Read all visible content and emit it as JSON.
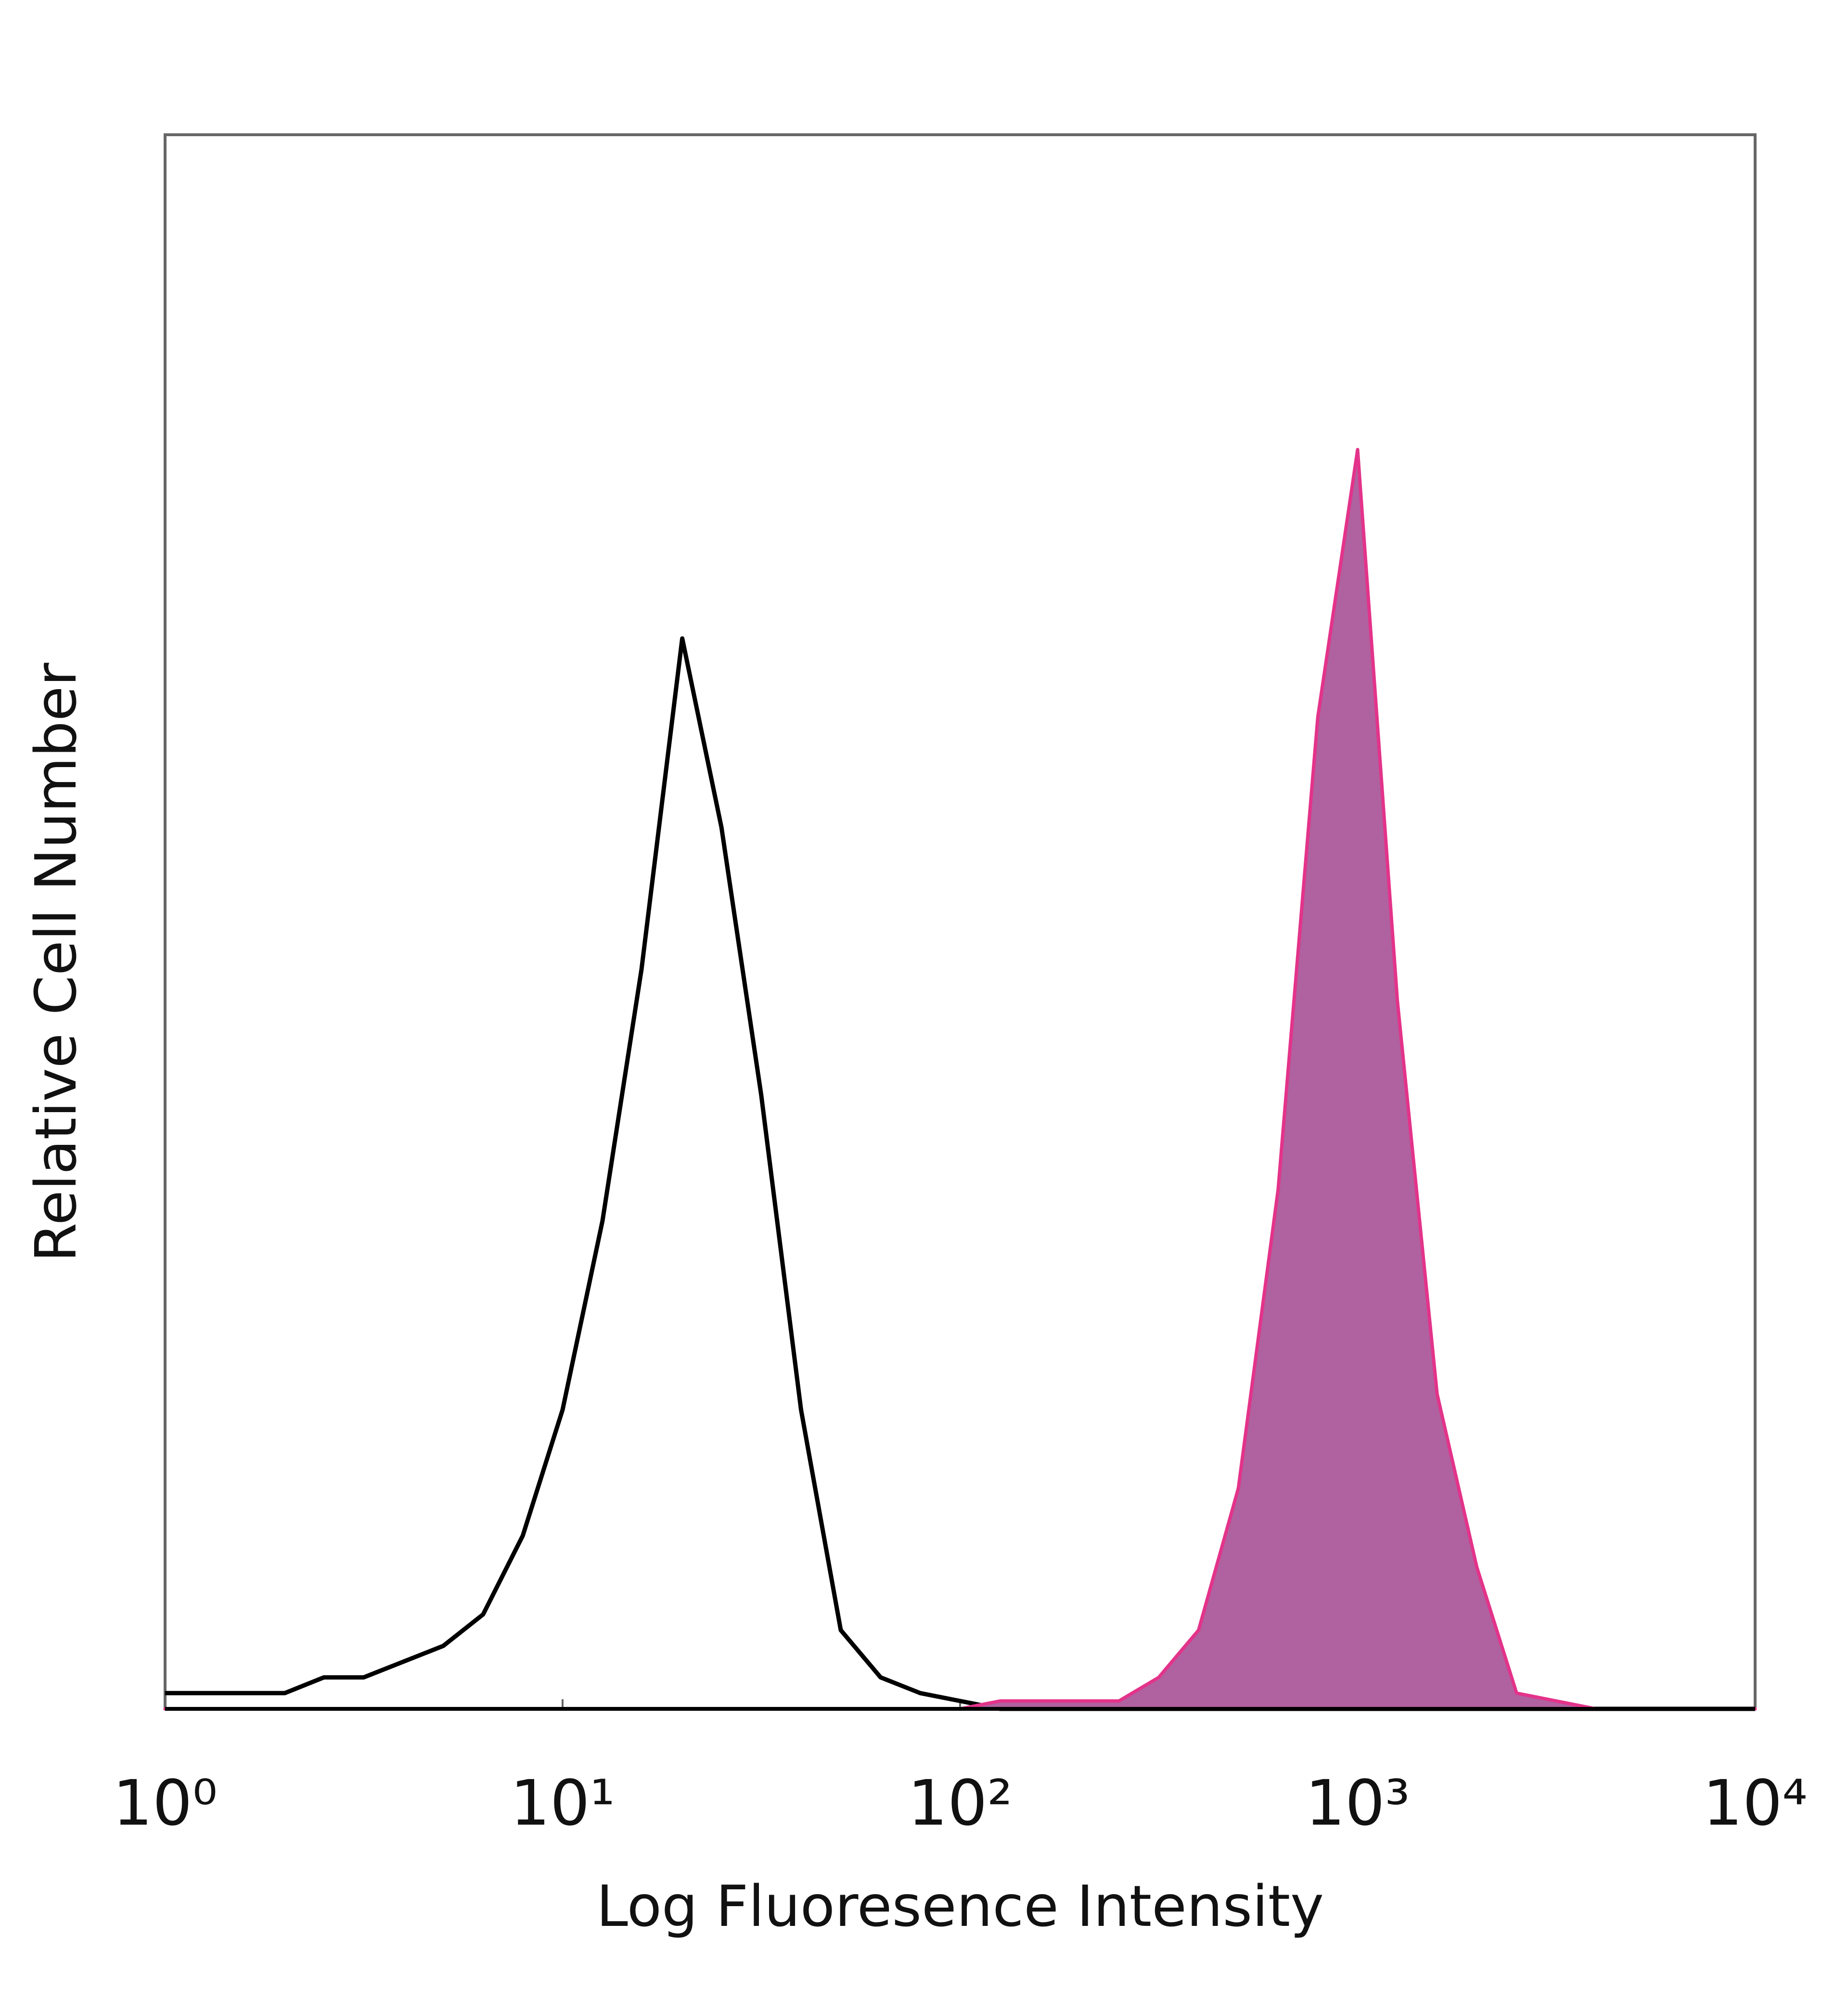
{
  "chart_data": {
    "type": "line",
    "xlabel": "Log Fluoresence Intensity",
    "ylabel": "Relative Cell Number",
    "xscale": "log",
    "xlim": [
      1,
      10000
    ],
    "xticks": [
      {
        "value": 1,
        "label": "10⁰"
      },
      {
        "value": 10,
        "label": "10¹"
      },
      {
        "value": 100,
        "label": "10²"
      },
      {
        "value": 1000,
        "label": "10³"
      },
      {
        "value": 10000,
        "label": "10⁴"
      }
    ],
    "ylim": [
      0,
      100
    ],
    "x": [
      1,
      1.26,
      1.58,
      2,
      2.51,
      3.16,
      3.98,
      5.01,
      6.31,
      7.94,
      10,
      12.6,
      15.8,
      20,
      25.1,
      31.6,
      39.8,
      50.1,
      63.1,
      79.4,
      100,
      126,
      158,
      200,
      251,
      316,
      398,
      501,
      631,
      794,
      1000,
      1259,
      1585,
      1995,
      2512,
      3162,
      3981,
      5012,
      6310,
      7943,
      10000
    ],
    "series": [
      {
        "color": "#000000",
        "fill": false,
        "values": [
          1,
          1,
          1,
          1,
          2,
          2,
          3,
          4,
          6,
          11,
          19,
          31,
          47,
          68,
          56,
          39,
          19,
          5,
          2,
          1,
          0.5,
          0,
          0,
          0,
          0,
          0,
          0,
          0,
          0,
          0,
          0,
          0,
          0,
          0,
          0,
          0,
          0,
          0,
          0,
          0,
          0
        ]
      },
      {
        "color": "#b0619f",
        "edge_color": "#e3338a",
        "fill": true,
        "values": [
          0,
          0,
          0,
          0,
          0,
          0,
          0,
          0,
          0,
          0,
          0,
          0,
          0,
          0,
          0,
          0,
          0,
          0,
          0,
          0,
          0,
          0.5,
          0.5,
          0.5,
          0.5,
          2,
          5,
          14,
          33,
          63,
          80,
          45,
          20,
          9,
          1,
          0.5,
          0,
          0,
          0,
          0,
          0
        ]
      }
    ]
  }
}
